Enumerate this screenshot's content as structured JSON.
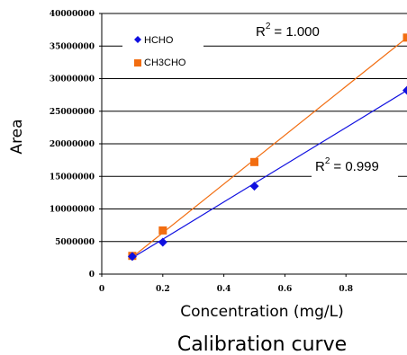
{
  "colors": {
    "HCHO": "#1010e0",
    "CH3CHO": "#f26d10",
    "grid": "#000000"
  },
  "chart_data": {
    "type": "scatter",
    "title": "Calibration curve",
    "xlabel": "Concentration (mg/L)",
    "ylabel": "Area",
    "xlim": [
      0,
      1.0
    ],
    "ylim": [
      0,
      40000000
    ],
    "xticks": [
      0,
      0.2,
      0.4,
      0.6,
      0.8
    ],
    "xtick_labels": [
      "0",
      "0.2",
      "0.4",
      "0.6",
      "0.8"
    ],
    "yticks": [
      0,
      5000000,
      10000000,
      15000000,
      20000000,
      25000000,
      30000000,
      35000000,
      40000000
    ],
    "ytick_labels": [
      "0",
      "5000000",
      "10000000",
      "15000000",
      "20000000",
      "25000000",
      "30000000",
      "35000000",
      "40000000"
    ],
    "grid": "horizontal",
    "legend_position": "top-left",
    "series": [
      {
        "name": "HCHO",
        "marker": "diamond",
        "x": [
          0.1,
          0.2,
          0.5,
          1.0
        ],
        "y": [
          2700000,
          4900000,
          13500000,
          28200000
        ],
        "trendline": [
          [
            0.1,
            2500000
          ],
          [
            1.0,
            28200000
          ]
        ],
        "r2_label": "R",
        "r2_value": "= 0.999"
      },
      {
        "name": "CH3CHO",
        "marker": "square",
        "x": [
          0.1,
          0.2,
          0.5,
          1.0
        ],
        "y": [
          2800000,
          6700000,
          17200000,
          36300000
        ],
        "trendline": [
          [
            0.1,
            2600000
          ],
          [
            1.0,
            36300000
          ]
        ],
        "r2_label": "R",
        "r2_value": "= 1.000"
      }
    ]
  }
}
